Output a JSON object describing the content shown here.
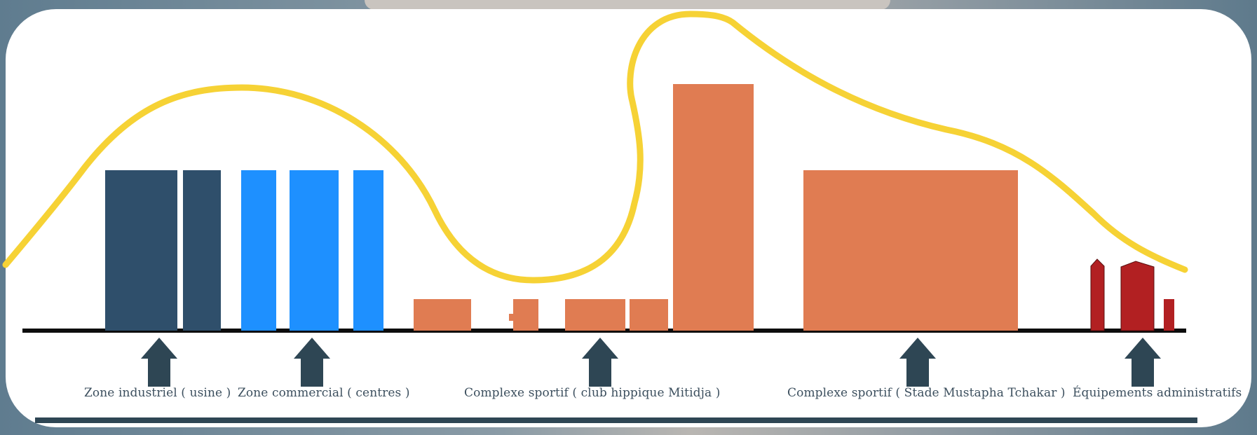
{
  "labels": {
    "industrial": "Zone industriel ( usine )",
    "commercial": "Zone commercial ( centres )",
    "sport_club": "Complexe sportif ( club hippique Mitidja )",
    "sport_stade": "Complexe sportif ( Stade Mustapha Tchakar )",
    "admin": "Équipements administratifs"
  },
  "colors": {
    "industrial": "#2f4f6b",
    "commercial": "#1e90ff",
    "sport": "#e07c52",
    "admin": "#b22022",
    "curve": "#f6d235",
    "arrow": "#2e4654",
    "ground": "#0d0d0d"
  }
}
